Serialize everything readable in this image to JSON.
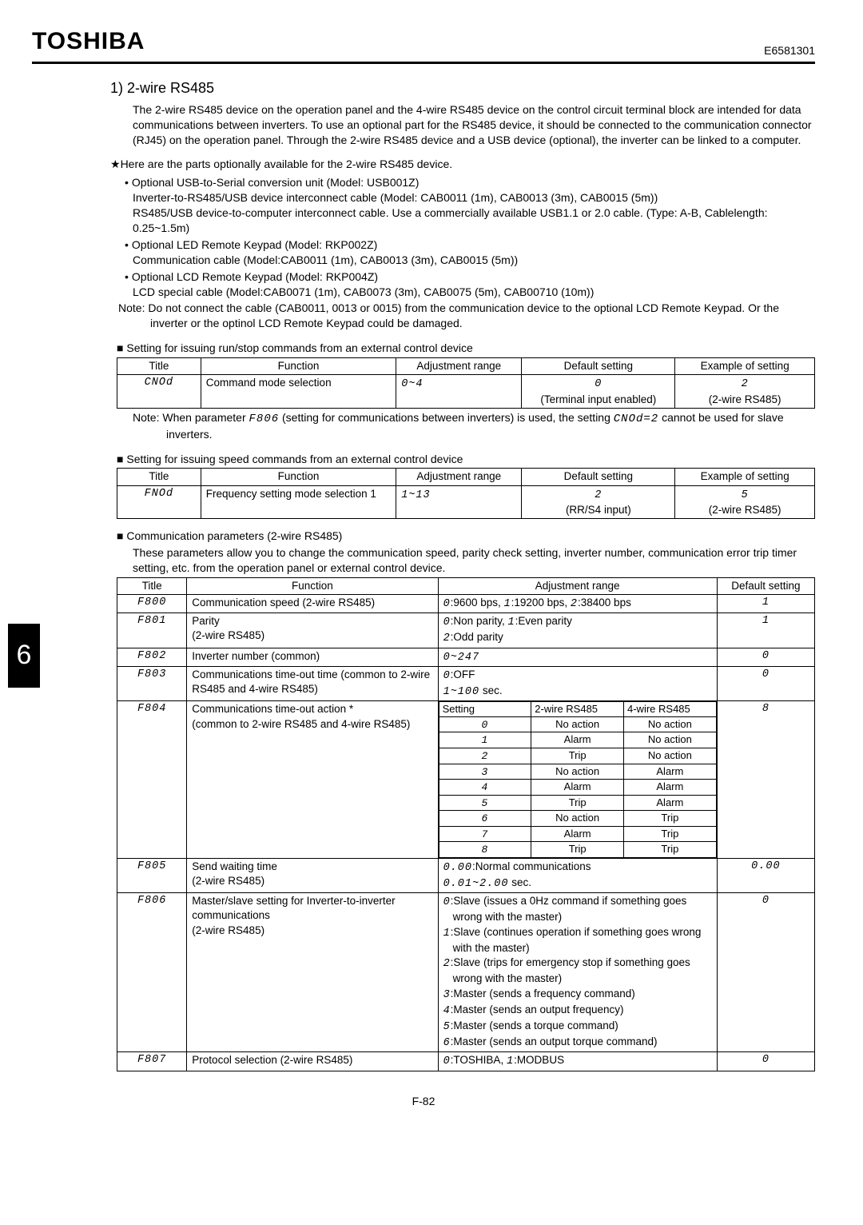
{
  "logo": "TOSHIBA",
  "docid": "E6581301",
  "chapter_tab": "6",
  "page_number": "F-82",
  "sec_heading": "1)  2-wire RS485",
  "intro": "The 2-wire RS485 device on the operation panel and the 4-wire RS485 device on the control circuit terminal block are intended for data communications between inverters. To use an optional part for the RS485 device, it should be connected to the communication connector (RJ45) on the operation panel. Through the 2-wire RS485 device  and a USB device (optional), the inverter can be linked to a computer.",
  "parts_intro": "Here are the parts optionally available for the 2-wire RS485 device.",
  "bul1a": "Optional USB-to-Serial conversion unit (Model: USB001Z)",
  "bul1b": "Inverter-to-RS485/USB device interconnect cable (Model: CAB0011 (1m), CAB0013 (3m), CAB0015 (5m))",
  "bul1c": "RS485/USB device-to-computer interconnect cable. Use a commercially available USB1.1 or 2.0 cable. (Type: A-B, Cablelength: 0.25~1.5m)",
  "bul2a": "Optional LED Remote Keypad (Model: RKP002Z)",
  "bul2b": "Communication cable (Model:CAB0011 (1m), CAB0013 (3m), CAB0015 (5m))",
  "bul3a": "Optional LCD Remote Keypad (Model: RKP004Z)",
  "bul3b": "LCD special cable (Model:CAB0071 (1m), CAB0073 (3m), CAB0075 (5m), CAB00710 (10m))",
  "note1": "Note: Do not connect the cable (CAB0011, 0013 or 0015) from the communication device to the optional LCD Remote Keypad. Or the inverter or the optinol LCD Remote Keypad could be damaged.",
  "h_run": "Setting for issuing run/stop commands from an external control device",
  "t1": {
    "cols": [
      "Title",
      "Function",
      "Adjustment range",
      "Default setting",
      "Example of setting"
    ],
    "r": [
      "CNOd",
      "Command mode selection",
      "0~4",
      "0",
      "(Terminal input enabled)",
      "2",
      "(2-wire RS485)"
    ]
  },
  "note_t1a": "Note: When parameter ",
  "note_t1b": "F806",
  "note_t1c": " (setting for communications between inverters) is used, the setting ",
  "note_t1d": "CNOd=2",
  "note_t1e": " cannot be used for slave inverters.",
  "h_speed": "Setting for issuing speed commands from an external control device",
  "t2": {
    "cols": [
      "Title",
      "Function",
      "Adjustment range",
      "Default setting",
      "Example of setting"
    ],
    "r": [
      "FNOd",
      "Frequency setting mode selection 1",
      "1~13",
      "2",
      "(RR/S4 input)",
      "5",
      "(2-wire RS485)"
    ]
  },
  "h_comm": "Communication parameters (2-wire RS485)",
  "comm_desc": "These parameters allow you to change the communication speed, parity check setting, inverter number, communication error trip timer setting, etc. from the operation panel or external control device.",
  "t3": {
    "cols": [
      "Title",
      "Function",
      "Adjustment range",
      "Default setting"
    ],
    "rows": [
      {
        "title": "F800",
        "fn": "Communication speed (2-wire RS485)",
        "range_pre": "0",
        "range_a": ":9600 bps, ",
        "range_b": "1",
        "range_c": ":19200 bps, ",
        "range_d": "2",
        "range_e": ":38400 bps",
        "def": "1"
      },
      {
        "title": "F801",
        "fn": "Parity\n(2-wire RS485)",
        "range_pre": "0",
        "range_a": ":Non parity, ",
        "range_b": "1",
        "range_c": ":Even parity\n",
        "range_d": "2",
        "range_e": ":Odd parity",
        "def": "1"
      },
      {
        "title": "F802",
        "fn": "Inverter number (common)",
        "range": "0~247",
        "def": "0"
      },
      {
        "title": "F803",
        "fn": "Communications time-out time (common to 2-wire RS485 and 4-wire RS485)",
        "range_pre": "0",
        "range_a": ":OFF\n",
        "range_b": "1~100",
        "range_c": " sec.",
        "def": "0"
      },
      {
        "title": "F804",
        "fn": "Communications time-out action *\n(common to 2-wire RS485 and 4-wire RS485)",
        "nested": {
          "head": [
            "Setting",
            "2-wire RS485",
            "4-wire RS485"
          ],
          "rows": [
            [
              "0",
              "No action",
              "No action"
            ],
            [
              "1",
              "Alarm",
              "No action"
            ],
            [
              "2",
              "Trip",
              "No action"
            ],
            [
              "3",
              "No action",
              "Alarm"
            ],
            [
              "4",
              "Alarm",
              "Alarm"
            ],
            [
              "5",
              "Trip",
              "Alarm"
            ],
            [
              "6",
              "No action",
              "Trip"
            ],
            [
              "7",
              "Alarm",
              "Trip"
            ],
            [
              "8",
              "Trip",
              "Trip"
            ]
          ]
        },
        "def": "8"
      },
      {
        "title": "F805",
        "fn": "Send waiting time\n(2-wire RS485)",
        "range_pre": "0.00",
        "range_a": ":Normal communications\n",
        "range_b": "0.01~2.00",
        "range_c": " sec.",
        "def": "0.00"
      },
      {
        "title": "F806",
        "fn": "Master/slave setting for Inverter-to-inverter communications\n(2-wire RS485)",
        "range_list": [
          [
            "0",
            ":Slave (issues a 0Hz command if something goes wrong with the master)"
          ],
          [
            "1",
            ":Slave (continues operation if something goes wrong with the master)"
          ],
          [
            "2",
            ":Slave (trips for emergency stop if something goes wrong with the master)"
          ],
          [
            "3",
            ":Master (sends a frequency command)"
          ],
          [
            "4",
            ":Master (sends an output frequency)"
          ],
          [
            "5",
            ":Master (sends a torque command)"
          ],
          [
            "6",
            ":Master (sends an output torque command)"
          ]
        ],
        "def": "0"
      },
      {
        "title": "F807",
        "fn": "Protocol selection (2-wire RS485)",
        "range_pre": "0",
        "range_a": ":TOSHIBA,  ",
        "range_b": "1",
        "range_c": ":MODBUS",
        "def": "0"
      }
    ]
  }
}
